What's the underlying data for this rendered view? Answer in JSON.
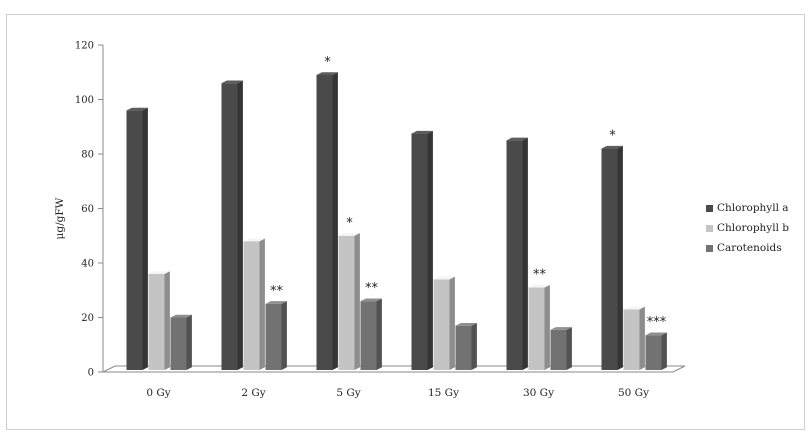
{
  "chart_data": {
    "type": "bar",
    "title": "",
    "xlabel": "",
    "ylabel": "μg/gFW",
    "ylim": [
      0,
      120
    ],
    "yticks": [
      0,
      20,
      40,
      60,
      80,
      100,
      120
    ],
    "categories": [
      "0 Gy",
      "2 Gy",
      "5 Gy",
      "15 Gy",
      "30 Gy",
      "50 Gy"
    ],
    "series": [
      {
        "name": "Chlorophyll a",
        "values": [
          96,
          106,
          109,
          87.5,
          85,
          82
        ],
        "color": "#4a4a4a",
        "annotations": [
          "",
          "",
          "*",
          "",
          "",
          "*"
        ]
      },
      {
        "name": "Chlorophyll b",
        "values": [
          36,
          48,
          50,
          34,
          31,
          23
        ],
        "color": "#c4c4c4",
        "annotations": [
          "",
          "",
          "*",
          "",
          "**",
          ""
        ]
      },
      {
        "name": "Carotenoids",
        "values": [
          20,
          25,
          26,
          17,
          15.5,
          13.5
        ],
        "color": "#727272",
        "annotations": [
          "",
          "**",
          "**",
          "",
          "",
          "***"
        ]
      }
    ],
    "legend_position": "right",
    "grid": false,
    "style": "3d"
  }
}
